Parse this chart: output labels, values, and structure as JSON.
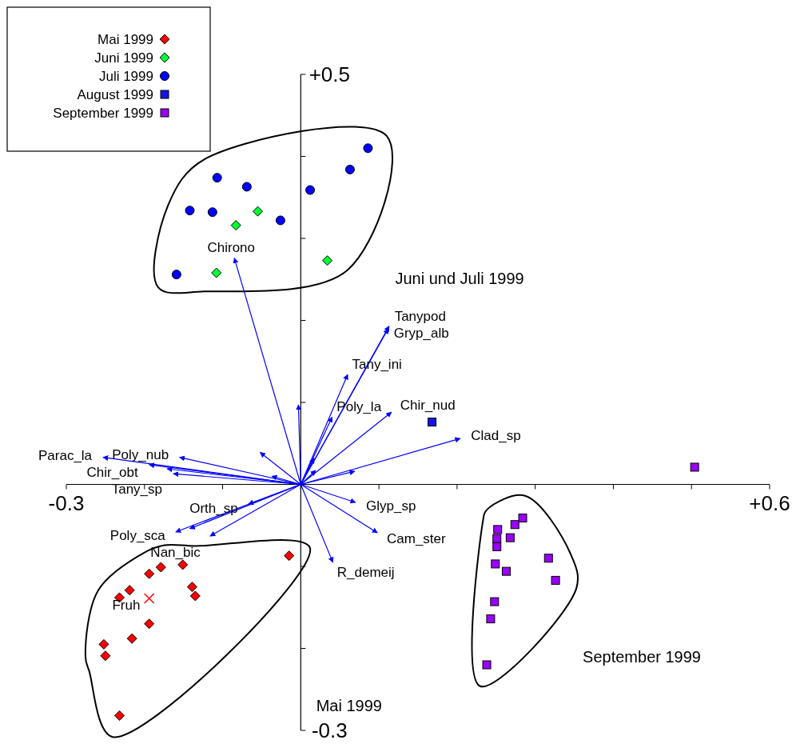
{
  "chart_data": {
    "type": "scatter",
    "xlim": [
      -0.3,
      0.6
    ],
    "ylim": [
      -0.3,
      0.5
    ],
    "xticks": [
      {
        "value": -0.3,
        "label": "-0.3"
      },
      {
        "value": -0.2,
        "label": null
      },
      {
        "value": -0.1,
        "label": null
      },
      {
        "value": 0,
        "label": null
      },
      {
        "value": 0.1,
        "label": null
      },
      {
        "value": 0.2,
        "label": null
      },
      {
        "value": 0.3,
        "label": null
      },
      {
        "value": 0.4,
        "label": null
      },
      {
        "value": 0.5,
        "label": null
      },
      {
        "value": 0.6,
        "label": "+0.6"
      }
    ],
    "yticks": [
      {
        "value": -0.3,
        "label": "-0.3"
      },
      {
        "value": -0.2,
        "label": null
      },
      {
        "value": -0.1,
        "label": null
      },
      {
        "value": 0,
        "label": null
      },
      {
        "value": 0.1,
        "label": null
      },
      {
        "value": 0.2,
        "label": null
      },
      {
        "value": 0.3,
        "label": null
      },
      {
        "value": 0.4,
        "label": null
      },
      {
        "value": 0.5,
        "label": "+0.5"
      }
    ],
    "legend": "top left",
    "series": [
      {
        "name": "Mai 1999",
        "color": "#ff0000",
        "marker": "diamond",
        "x": [
          -0.015,
          -0.151,
          -0.179,
          -0.194,
          -0.219,
          -0.232,
          -0.139,
          -0.135,
          -0.194,
          -0.216,
          -0.252,
          -0.25,
          -0.232
        ],
        "values": [
          -0.087,
          -0.098,
          -0.101,
          -0.109,
          -0.129,
          -0.138,
          -0.125,
          -0.136,
          -0.17,
          -0.188,
          -0.195,
          -0.209,
          -0.282
        ]
      },
      {
        "name": "Juni 1999",
        "color": "#00ff33",
        "marker": "diamond",
        "x": [
          -0.055,
          -0.083,
          -0.108,
          0.034
        ],
        "values": [
          0.333,
          0.316,
          0.258,
          0.273
        ]
      },
      {
        "name": "Juli 1999",
        "color": "#0000ff",
        "marker": "circle",
        "x": [
          -0.107,
          -0.069,
          -0.142,
          -0.113,
          -0.026,
          -0.159,
          0.012,
          0.063,
          0.086
        ],
        "values": [
          0.374,
          0.363,
          0.334,
          0.332,
          0.322,
          0.256,
          0.359,
          0.384,
          0.41
        ]
      },
      {
        "name": "August 1999",
        "color": "#1414e6",
        "marker": "square",
        "x": [
          0.168
        ],
        "values": [
          0.076
        ]
      },
      {
        "name": "September 1999",
        "color": "#9900ff",
        "marker": "square",
        "x": [
          0.504,
          0.252,
          0.274,
          0.284,
          0.251,
          0.268,
          0.251,
          0.249,
          0.263,
          0.317,
          0.326,
          0.248,
          0.243,
          0.238
        ],
        "values": [
          0.021,
          -0.055,
          -0.049,
          -0.041,
          -0.066,
          -0.065,
          -0.076,
          -0.097,
          -0.106,
          -0.09,
          -0.117,
          -0.143,
          -0.164,
          -0.22
        ]
      },
      {
        "type": "scatter",
        "color": "#ff0000",
        "marker": "cross",
        "x": [
          -0.194
        ],
        "values": [
          -0.139
        ]
      },
      {
        "type": "line",
        "color": "#0000ff",
        "x": [
          0,
          -0.085
        ],
        "values": [
          0,
          0.276
        ]
      },
      {
        "type": "line",
        "color": "#0000ff",
        "x": [
          0,
          0.113
        ],
        "values": [
          0,
          0.193
        ]
      },
      {
        "type": "line",
        "color": "#0000ff",
        "x": [
          0,
          0.112
        ],
        "values": [
          0,
          0.19
        ]
      },
      {
        "type": "line",
        "color": "#0000ff",
        "x": [
          0,
          0.06
        ],
        "values": [
          0,
          0.134
        ]
      },
      {
        "type": "line",
        "color": "#0000ff",
        "x": [
          0,
          0.04
        ],
        "values": [
          0,
          0.082
        ]
      },
      {
        "type": "line",
        "color": "#0000ff",
        "x": [
          0,
          -0.003
        ],
        "values": [
          0,
          0.097
        ]
      },
      {
        "type": "line",
        "color": "#0000ff",
        "x": [
          0,
          0.116
        ],
        "values": [
          0,
          0.088
        ]
      },
      {
        "type": "line",
        "color": "#0000ff",
        "x": [
          0,
          0.204
        ],
        "values": [
          0,
          0.056
        ]
      },
      {
        "type": "line",
        "color": "#0000ff",
        "x": [
          0,
          0.069
        ],
        "values": [
          0,
          0.016
        ]
      },
      {
        "type": "line",
        "color": "#0000ff",
        "x": [
          0,
          0.019
        ],
        "values": [
          0,
          0.017
        ]
      },
      {
        "type": "line",
        "color": "#0000ff",
        "x": [
          0,
          0.017
        ],
        "values": [
          0,
          0.032
        ]
      },
      {
        "type": "line",
        "color": "#0000ff",
        "x": [
          0,
          -0.052
        ],
        "values": [
          0,
          0.039
        ]
      },
      {
        "type": "line",
        "color": "#0000ff",
        "x": [
          0,
          -0.155
        ],
        "values": [
          0,
          0.033
        ]
      },
      {
        "type": "line",
        "color": "#0000ff",
        "x": [
          0,
          -0.253
        ],
        "values": [
          0,
          0.033
        ]
      },
      {
        "type": "line",
        "color": "#0000ff",
        "x": [
          0,
          -0.194
        ],
        "values": [
          0,
          0.024
        ]
      },
      {
        "type": "line",
        "color": "#0000ff",
        "x": [
          0,
          -0.171
        ],
        "values": [
          0,
          0.019
        ]
      },
      {
        "type": "line",
        "color": "#0000ff",
        "x": [
          0,
          -0.163
        ],
        "values": [
          0,
          0.013
        ]
      },
      {
        "type": "line",
        "color": "#0000ff",
        "x": [
          0,
          -0.037
        ],
        "values": [
          0,
          0.01
        ]
      },
      {
        "type": "line",
        "color": "#0000ff",
        "x": [
          0,
          -0.067
        ],
        "values": [
          0,
          -0.024
        ]
      },
      {
        "type": "line",
        "color": "#0000ff",
        "x": [
          0,
          -0.142
        ],
        "values": [
          0,
          -0.054
        ]
      },
      {
        "type": "line",
        "color": "#0000ff",
        "x": [
          0,
          -0.16
        ],
        "values": [
          0,
          -0.058
        ]
      },
      {
        "type": "line",
        "color": "#0000ff",
        "x": [
          0,
          -0.116
        ],
        "values": [
          0,
          -0.063
        ]
      },
      {
        "type": "line",
        "color": "#0000ff",
        "x": [
          0,
          0.07
        ],
        "values": [
          0,
          -0.022
        ]
      },
      {
        "type": "line",
        "color": "#0000ff",
        "x": [
          0,
          0.098
        ],
        "values": [
          0,
          -0.059
        ]
      },
      {
        "type": "line",
        "color": "#0000ff",
        "x": [
          0,
          0.041
        ],
        "values": [
          0,
          -0.095
        ]
      }
    ],
    "annotations": [
      {
        "text": "Chirono",
        "x": -0.085,
        "y": 0.276
      },
      {
        "text": "Tanypod",
        "x": 0.113,
        "y": 0.193
      },
      {
        "text": "Gryp_alb",
        "x": 0.112,
        "y": 0.19
      },
      {
        "text": "Tany_ini",
        "x": 0.06,
        "y": 0.134
      },
      {
        "text": "Poly_la",
        "x": 0.04,
        "y": 0.082
      },
      {
        "text": "Chir_nud",
        "x": 0.116,
        "y": 0.088
      },
      {
        "text": "Clad_sp",
        "x": 0.204,
        "y": 0.056
      },
      {
        "text": "Poly_nub",
        "x": -0.155,
        "y": 0.033
      },
      {
        "text": "Parac_la",
        "x": -0.253,
        "y": 0.033
      },
      {
        "text": "Chir_obt",
        "x": -0.194,
        "y": 0.024
      },
      {
        "text": "Tany_sp",
        "x": -0.163,
        "y": 0.013
      },
      {
        "text": "Orth_sp",
        "x": -0.067,
        "y": -0.024
      },
      {
        "text": "Poly_sca",
        "x": -0.16,
        "y": -0.058
      },
      {
        "text": "Nan_bic",
        "x": -0.116,
        "y": -0.063
      },
      {
        "text": "Glyp_sp",
        "x": 0.07,
        "y": -0.022
      },
      {
        "text": "Cam_ster",
        "x": 0.098,
        "y": -0.059
      },
      {
        "text": "R_demeij",
        "x": 0.041,
        "y": -0.095
      },
      {
        "text": "Fruh",
        "x": -0.194,
        "y": -0.139
      },
      "Mai 1999",
      "Juni und Juli 1999",
      "September 1999"
    ]
  }
}
